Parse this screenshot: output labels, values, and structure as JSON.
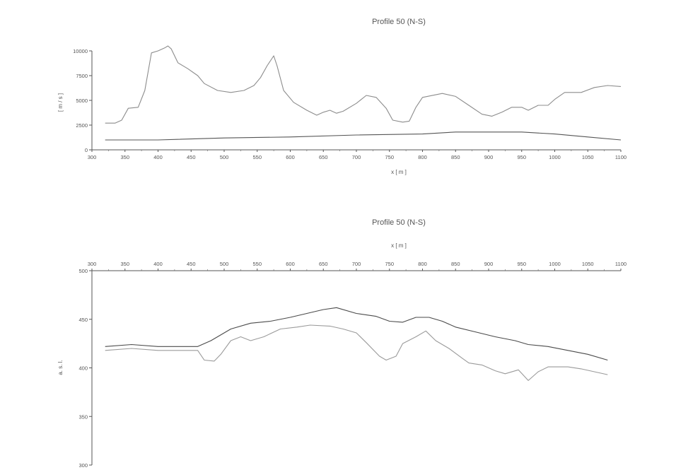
{
  "chart_data": [
    {
      "type": "line",
      "title": "Profile 50 (N-S)",
      "xlabel": "x [ m ]",
      "ylabel": "[ m / s ]",
      "xlim": [
        300,
        1100
      ],
      "ylim": [
        0,
        10000
      ],
      "x_ticks": [
        "300",
        "350",
        "400",
        "450",
        "500",
        "550",
        "600",
        "650",
        "700",
        "750",
        "800",
        "850",
        "900",
        "950",
        "1000",
        "1050",
        "1100"
      ],
      "y_ticks": [
        "0",
        "2500",
        "5000",
        "7500",
        "10000"
      ],
      "grid": false,
      "series": [
        {
          "color": "#8c8c8c",
          "points": [
            [
              320,
              2700
            ],
            [
              335,
              2700
            ],
            [
              345,
              3000
            ],
            [
              355,
              4200
            ],
            [
              370,
              4300
            ],
            [
              380,
              6000
            ],
            [
              390,
              9800
            ],
            [
              400,
              10000
            ],
            [
              410,
              10300
            ],
            [
              415,
              10500
            ],
            [
              420,
              10200
            ],
            [
              430,
              8800
            ],
            [
              445,
              8200
            ],
            [
              460,
              7500
            ],
            [
              470,
              6700
            ],
            [
              490,
              6000
            ],
            [
              510,
              5800
            ],
            [
              530,
              6000
            ],
            [
              545,
              6500
            ],
            [
              555,
              7300
            ],
            [
              565,
              8500
            ],
            [
              575,
              9500
            ],
            [
              580,
              8500
            ],
            [
              590,
              6000
            ],
            [
              605,
              4800
            ],
            [
              625,
              4000
            ],
            [
              640,
              3500
            ],
            [
              650,
              3800
            ],
            [
              660,
              4000
            ],
            [
              670,
              3700
            ],
            [
              680,
              3900
            ],
            [
              700,
              4700
            ],
            [
              715,
              5500
            ],
            [
              730,
              5300
            ],
            [
              745,
              4200
            ],
            [
              755,
              3000
            ],
            [
              770,
              2800
            ],
            [
              780,
              2900
            ],
            [
              790,
              4300
            ],
            [
              800,
              5300
            ],
            [
              830,
              5700
            ],
            [
              850,
              5400
            ],
            [
              870,
              4500
            ],
            [
              890,
              3600
            ],
            [
              905,
              3400
            ],
            [
              920,
              3800
            ],
            [
              935,
              4300
            ],
            [
              950,
              4300
            ],
            [
              960,
              4000
            ],
            [
              975,
              4500
            ],
            [
              990,
              4500
            ],
            [
              1000,
              5100
            ],
            [
              1015,
              5800
            ],
            [
              1040,
              5800
            ],
            [
              1060,
              6300
            ],
            [
              1080,
              6500
            ],
            [
              1100,
              6400
            ]
          ]
        },
        {
          "color": "#555555",
          "points": [
            [
              320,
              1000
            ],
            [
              400,
              1000
            ],
            [
              500,
              1200
            ],
            [
              600,
              1300
            ],
            [
              700,
              1500
            ],
            [
              800,
              1600
            ],
            [
              850,
              1800
            ],
            [
              950,
              1800
            ],
            [
              1000,
              1600
            ],
            [
              1050,
              1300
            ],
            [
              1100,
              1000
            ]
          ]
        }
      ]
    },
    {
      "type": "line",
      "title": "Profile 50 (N-S)",
      "xlabel": "x [ m ]",
      "ylabel": "a. s. l.",
      "xlim": [
        300,
        1100
      ],
      "ylim": [
        300,
        500
      ],
      "x_ticks": [
        "300",
        "350",
        "400",
        "450",
        "500",
        "550",
        "600",
        "650",
        "700",
        "750",
        "800",
        "850",
        "900",
        "950",
        "1000",
        "1050",
        "1100"
      ],
      "y_ticks": [
        "300",
        "350",
        "400",
        "450",
        "500"
      ],
      "grid": false,
      "series": [
        {
          "color": "#4a4a4a",
          "points": [
            [
              320,
              422
            ],
            [
              360,
              424
            ],
            [
              400,
              422
            ],
            [
              440,
              422
            ],
            [
              460,
              422
            ],
            [
              480,
              428
            ],
            [
              510,
              440
            ],
            [
              540,
              446
            ],
            [
              570,
              448
            ],
            [
              600,
              452
            ],
            [
              625,
              456
            ],
            [
              650,
              460
            ],
            [
              670,
              462
            ],
            [
              700,
              456
            ],
            [
              730,
              453
            ],
            [
              750,
              448
            ],
            [
              770,
              447
            ],
            [
              790,
              452
            ],
            [
              810,
              452
            ],
            [
              830,
              448
            ],
            [
              850,
              442
            ],
            [
              880,
              437
            ],
            [
              910,
              432
            ],
            [
              940,
              428
            ],
            [
              960,
              424
            ],
            [
              990,
              422
            ],
            [
              1020,
              418
            ],
            [
              1050,
              414
            ],
            [
              1080,
              408
            ]
          ]
        },
        {
          "color": "#9a9a9a",
          "points": [
            [
              320,
              418
            ],
            [
              360,
              420
            ],
            [
              400,
              418
            ],
            [
              440,
              418
            ],
            [
              460,
              418
            ],
            [
              470,
              408
            ],
            [
              485,
              407
            ],
            [
              495,
              414
            ],
            [
              510,
              428
            ],
            [
              525,
              432
            ],
            [
              540,
              428
            ],
            [
              560,
              432
            ],
            [
              585,
              440
            ],
            [
              610,
              442
            ],
            [
              630,
              444
            ],
            [
              660,
              443
            ],
            [
              680,
              440
            ],
            [
              700,
              436
            ],
            [
              715,
              426
            ],
            [
              735,
              412
            ],
            [
              745,
              408
            ],
            [
              760,
              412
            ],
            [
              770,
              425
            ],
            [
              790,
              432
            ],
            [
              805,
              438
            ],
            [
              820,
              428
            ],
            [
              840,
              420
            ],
            [
              860,
              410
            ],
            [
              870,
              405
            ],
            [
              890,
              403
            ],
            [
              910,
              397
            ],
            [
              925,
              394
            ],
            [
              945,
              398
            ],
            [
              960,
              387
            ],
            [
              975,
              396
            ],
            [
              990,
              401
            ],
            [
              1020,
              401
            ],
            [
              1040,
              399
            ],
            [
              1060,
              396
            ],
            [
              1080,
              393
            ]
          ]
        }
      ]
    }
  ]
}
